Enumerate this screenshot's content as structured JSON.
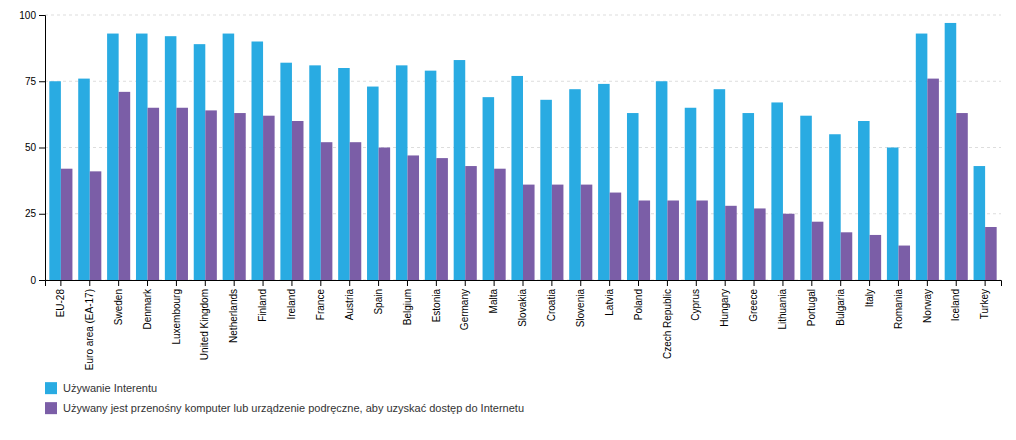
{
  "chart_data": {
    "type": "bar",
    "categories": [
      "EU-28",
      "Euro area (EA-17)",
      "Sweden",
      "Denmark",
      "Luxembourg",
      "United Kingdom",
      "Netherlands",
      "Finland",
      "Ireland",
      "France",
      "Austria",
      "Spain",
      "Belgium",
      "Estonia",
      "Germany",
      "Malta",
      "Slovakia",
      "Croatia",
      "Slovenia",
      "Latvia",
      "Poland",
      "Czech Republic",
      "Cyprus",
      "Hungary",
      "Greece",
      "Lithuania",
      "Portugal",
      "Bulgaria",
      "Italy",
      "Romania",
      "Norway",
      "Iceland",
      "Turkey"
    ],
    "series": [
      {
        "name": "Używanie Interentu",
        "color": "#29ABE2",
        "values": [
          75,
          76,
          93,
          93,
          92,
          89,
          93,
          90,
          82,
          81,
          80,
          73,
          81,
          79,
          83,
          69,
          77,
          68,
          72,
          74,
          63,
          75,
          65,
          72,
          63,
          67,
          62,
          55,
          60,
          50,
          93,
          97,
          43
        ]
      },
      {
        "name": "Używany jest przenośny komputer lub urządzenie podręczne, aby uzyskać dostęp do Internetu",
        "color": "#7B5EA7",
        "values": [
          42,
          41,
          71,
          65,
          65,
          64,
          63,
          62,
          60,
          52,
          52,
          50,
          47,
          46,
          43,
          42,
          36,
          36,
          36,
          33,
          30,
          30,
          30,
          28,
          27,
          25,
          22,
          18,
          17,
          13,
          76,
          63,
          20
        ]
      }
    ],
    "ylim": [
      0,
      100
    ],
    "yticks": [
      0,
      25,
      50,
      75,
      100
    ],
    "grid": true
  }
}
